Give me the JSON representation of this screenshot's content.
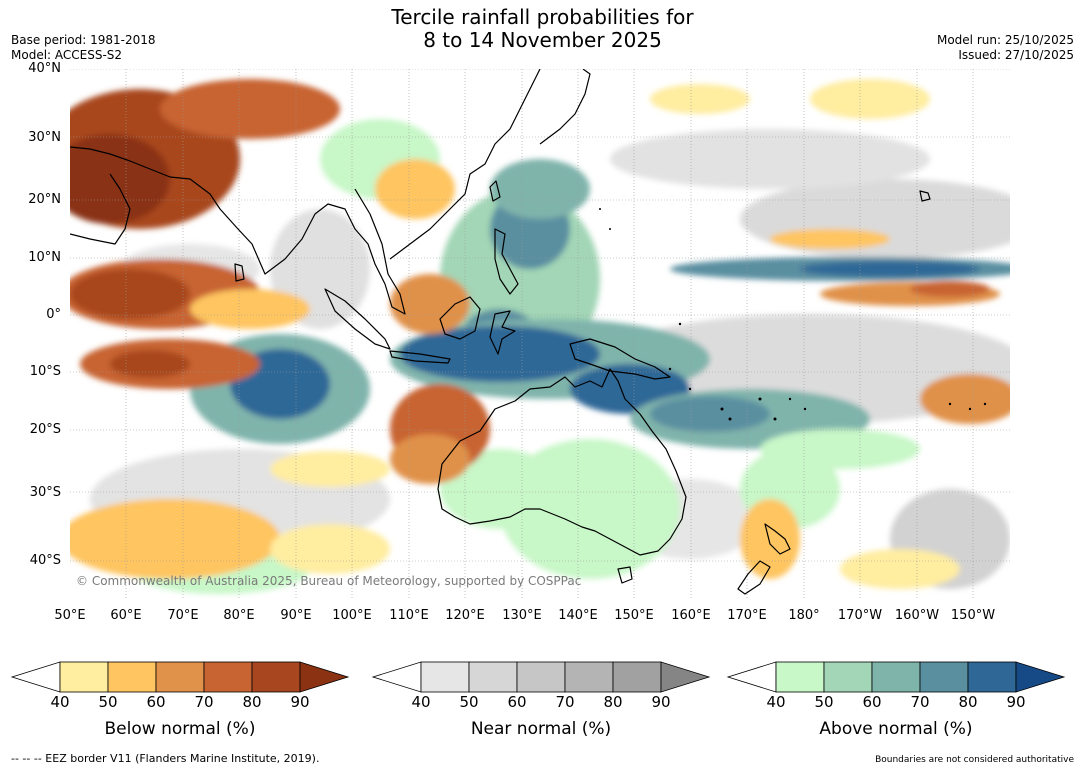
{
  "header": {
    "title_line1": "Tercile rainfall probabilities for",
    "title_line2": "8 to 14 November 2025",
    "base_period": "Base period: 1981-2018",
    "model": "Model: ACCESS-S2",
    "model_run": "Model run: 25/10/2025",
    "issued": "Issued: 27/10/2025"
  },
  "map": {
    "lat_ticks": [
      "40°N",
      "30°N",
      "20°N",
      "10°N",
      "0°",
      "10°S",
      "20°S",
      "30°S",
      "40°S"
    ],
    "lon_ticks": [
      "50°E",
      "60°E",
      "70°E",
      "80°E",
      "90°E",
      "100°E",
      "110°E",
      "120°E",
      "130°E",
      "140°E",
      "150°E",
      "160°E",
      "170°E",
      "180°",
      "170°W",
      "160°W",
      "150°W"
    ],
    "copyright": "© Commonwealth of Australia 2025, Bureau of Meteorology, supported by COSPPac"
  },
  "legend": {
    "below": {
      "label": "Below normal (%)",
      "ticks": [
        "40",
        "50",
        "60",
        "70",
        "80",
        "90"
      ],
      "colors": [
        "#ffeda0",
        "#fec560",
        "#e0914a",
        "#c86432",
        "#a8461f",
        "#8a3212"
      ]
    },
    "near": {
      "label": "Near normal (%)",
      "ticks": [
        "40",
        "50",
        "60",
        "70",
        "80",
        "90"
      ],
      "colors": [
        "#e6e6e6",
        "#d6d6d6",
        "#c6c6c6",
        "#b4b4b4",
        "#a1a1a1",
        "#858585"
      ]
    },
    "above": {
      "label": "Above normal (%)",
      "ticks": [
        "40",
        "50",
        "60",
        "70",
        "80",
        "90"
      ],
      "colors": [
        "#c8f7c8",
        "#a2d6b6",
        "#7fb4ab",
        "#5a8fa0",
        "#2f6797",
        "#164a86"
      ]
    }
  },
  "footer": {
    "eez": "--  --  -- EEZ border V11 (Flanders Marine Institute, 2019).",
    "boundaries": "Boundaries are not considered authoritative"
  }
}
